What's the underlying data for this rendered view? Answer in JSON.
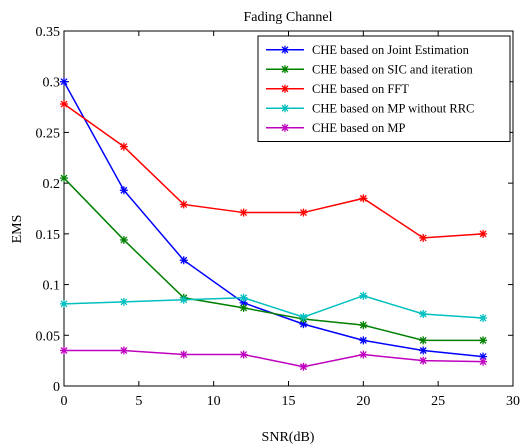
{
  "chart_data": {
    "type": "line",
    "title": "Fading Channel",
    "xlabel": "SNR(dB)",
    "ylabel": "EMS",
    "xlim": [
      0,
      30
    ],
    "ylim": [
      0,
      0.35
    ],
    "xticks": [
      0,
      5,
      10,
      15,
      20,
      25,
      30
    ],
    "yticks": [
      0,
      0.05,
      0.1,
      0.15,
      0.2,
      0.25,
      0.3,
      0.35
    ],
    "xtick_labels": [
      "0",
      "5",
      "10",
      "15",
      "20",
      "25",
      "30"
    ],
    "ytick_labels": [
      "0",
      "0.05",
      "0.1",
      "0.15",
      "0.2",
      "0.25",
      "0.3",
      "0.35"
    ],
    "grid": false,
    "legend_position": "top-right",
    "x": [
      0,
      4,
      8,
      12,
      16,
      20,
      24,
      28
    ],
    "series": [
      {
        "name": "CHE based on Joint Estimation",
        "color": "#0000FF",
        "values": [
          0.3,
          0.193,
          0.124,
          0.082,
          0.061,
          0.045,
          0.035,
          0.029
        ]
      },
      {
        "name": "CHE based on SIC and iteration",
        "color": "#008000",
        "values": [
          0.205,
          0.144,
          0.087,
          0.077,
          0.066,
          0.06,
          0.045,
          0.045
        ]
      },
      {
        "name": "CHE based on FFT",
        "color": "#FF0000",
        "values": [
          0.278,
          0.236,
          0.179,
          0.171,
          0.171,
          0.185,
          0.146,
          0.15
        ]
      },
      {
        "name": "CHE based on MP without RRC",
        "color": "#00BFBF",
        "values": [
          0.081,
          0.083,
          0.085,
          0.087,
          0.068,
          0.089,
          0.071,
          0.067
        ]
      },
      {
        "name": "CHE based on MP",
        "color": "#BF00BF",
        "values": [
          0.035,
          0.035,
          0.031,
          0.031,
          0.019,
          0.031,
          0.025,
          0.024
        ]
      }
    ]
  }
}
